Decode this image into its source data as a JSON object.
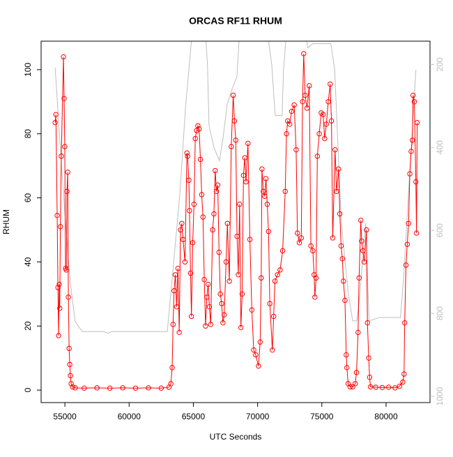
{
  "chart_data": {
    "type": "line",
    "title": "ORCAS RF11 RHUM",
    "xlabel": "UTC Seconds",
    "ylabel": "RHUM",
    "xlim": [
      53150,
      83420
    ],
    "ylim": [
      -3.9,
      108.9
    ],
    "y2lim": [
      1015,
      144
    ],
    "xticks": [
      55000,
      60000,
      65000,
      70000,
      75000,
      80000
    ],
    "yticks": [
      0,
      20,
      40,
      60,
      80,
      100
    ],
    "y2ticks": [
      200,
      400,
      600,
      800,
      1000
    ],
    "series": [
      {
        "color": "#ff0000",
        "marker": "circle",
        "x": [
          54240,
          54300,
          54400,
          54460,
          54510,
          54560,
          54600,
          54650,
          54720,
          54890,
          54940,
          54990,
          55050,
          55110,
          55160,
          55220,
          55270,
          55330,
          55380,
          55430,
          55490,
          55600,
          55800,
          56500,
          57500,
          58500,
          59500,
          60500,
          61500,
          62500,
          63100,
          63250,
          63350,
          63420,
          63500,
          63600,
          63700,
          63800,
          63900,
          64000,
          64100,
          64200,
          64350,
          64500,
          64550,
          64650,
          64700,
          64780,
          64850,
          64950,
          65050,
          65150,
          65250,
          65350,
          65450,
          65550,
          65650,
          65750,
          65850,
          65950,
          66050,
          66150,
          66250,
          66350,
          66500,
          66600,
          66700,
          66800,
          66900,
          67000,
          67100,
          67200,
          67300,
          67400,
          67550,
          67650,
          67800,
          67950,
          68100,
          68200,
          68300,
          68400,
          68500,
          68600,
          68700,
          68800,
          68900,
          69000,
          69100,
          69250,
          69400,
          69550,
          69700,
          69850,
          70070,
          70200,
          70280,
          70340,
          70450,
          70550,
          70650,
          70750,
          70850,
          70950,
          71150,
          71250,
          71350,
          71550,
          71750,
          71950,
          72150,
          72250,
          72340,
          72500,
          72650,
          72850,
          73000,
          73100,
          73250,
          73400,
          73500,
          73590,
          73700,
          73850,
          74020,
          74150,
          74300,
          74400,
          74460,
          74550,
          74650,
          74800,
          74950,
          75100,
          75220,
          75350,
          75500,
          75650,
          75750,
          75850,
          76030,
          76150,
          76300,
          76400,
          76500,
          76600,
          76680,
          76800,
          76900,
          76950,
          77050,
          77200,
          77400,
          77600,
          77700,
          77820,
          77900,
          78035,
          78100,
          78200,
          78300,
          78470,
          78550,
          78650,
          78720,
          78790,
          79200,
          79700,
          80200,
          80700,
          81050,
          81300,
          81400,
          81450,
          81550,
          81650,
          81750,
          81850,
          81950,
          82050,
          82100,
          82200,
          82320,
          82370,
          82420
        ],
        "values": [
          83.5,
          86,
          54.5,
          32,
          17,
          33,
          25.5,
          51,
          73,
          104,
          91,
          76,
          38,
          37.5,
          62,
          68,
          29,
          13,
          8,
          4.5,
          2,
          1,
          0.7,
          0.6,
          0.7,
          0.6,
          0.7,
          0.6,
          0.7,
          0.6,
          0.9,
          2,
          7,
          20.5,
          31,
          36,
          26,
          38,
          18,
          50,
          52,
          47,
          40,
          74,
          73,
          65.5,
          56,
          36.5,
          23,
          46,
          58,
          78.5,
          81,
          82.5,
          81.5,
          72,
          61,
          54,
          34.5,
          20,
          29,
          33,
          26,
          20.5,
          50,
          55,
          68.5,
          62,
          64,
          43,
          30,
          27,
          21,
          23.5,
          40,
          52,
          34,
          76,
          92,
          84,
          78,
          48,
          36,
          58,
          19.5,
          30,
          67,
          72.5,
          65,
          77,
          47,
          25,
          12.5,
          11,
          7.5,
          15,
          35,
          69,
          62,
          60.5,
          66,
          58,
          49.5,
          27,
          12.5,
          23,
          34,
          36,
          37.5,
          43.5,
          62,
          80,
          84,
          83,
          87,
          89,
          75,
          49,
          46,
          47.5,
          90,
          105,
          92,
          88,
          95,
          45,
          43.5,
          36,
          29,
          35,
          73,
          80,
          86.5,
          86,
          78.5,
          83,
          90,
          95.5,
          84,
          47.5,
          75,
          62,
          69,
          55,
          45,
          41,
          34,
          28,
          11,
          7,
          2,
          1,
          1,
          2,
          5.5,
          18,
          35,
          53,
          46.5,
          43.5,
          40,
          50,
          21,
          10,
          4,
          1,
          0.9,
          0.8,
          0.9,
          0.7,
          1.2,
          2.5,
          5,
          21,
          39,
          45.5,
          52,
          67.5,
          74.5,
          78,
          92,
          90,
          65,
          49,
          83.5
        ]
      },
      {
        "color": "#bebebe",
        "axis": "y2",
        "x": [
          54240,
          54600,
          55000,
          55400,
          55800,
          56350,
          58000,
          58400,
          58600,
          62970,
          63400,
          63940,
          64400,
          64860,
          65200,
          65800,
          66100,
          66220,
          66600,
          67030,
          67300,
          67630,
          68000,
          68390,
          68600,
          69000,
          70500,
          71100,
          71370,
          71910,
          72020,
          72300,
          72700,
          73500,
          73900,
          74300,
          74800,
          75700,
          76000,
          76520,
          77060,
          77400,
          77710,
          77950,
          78140,
          78410,
          78680,
          79500,
          81120,
          81400,
          81670,
          82000,
          82320
        ],
        "values": [
          207,
          380,
          560,
          720,
          820,
          844,
          844,
          848,
          844,
          844,
          700,
          516,
          300,
          140,
          60,
          60,
          200,
          348,
          400,
          432,
          380,
          297,
          260,
          230,
          120,
          60,
          60,
          200,
          323,
          323,
          213,
          100,
          60,
          60,
          160,
          150,
          150,
          150,
          213,
          583,
          751,
          818,
          818,
          760,
          684,
          583,
          818,
          810,
          810,
          700,
          550,
          380,
          213
        ]
      }
    ]
  }
}
